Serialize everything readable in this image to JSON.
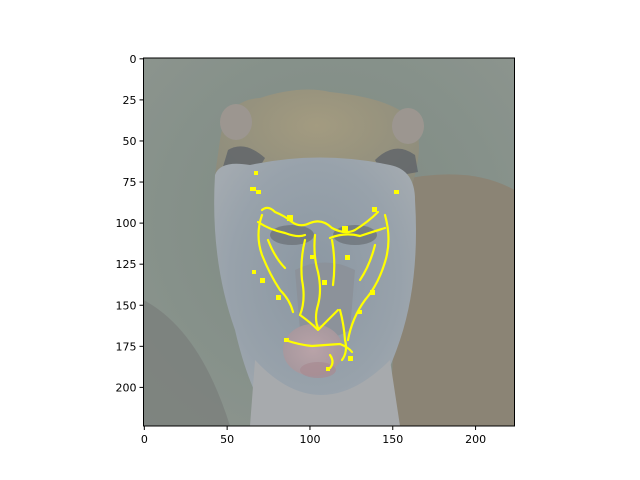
{
  "figure": {
    "subject": "monkey-face-photo-with-saliency-overlay",
    "overlay_color": "#ffff00",
    "image_tint": "washed-out-grayscale"
  },
  "axes": {
    "x_ticks": [
      {
        "value": 0,
        "label": "0"
      },
      {
        "value": 50,
        "label": "50"
      },
      {
        "value": 100,
        "label": "100"
      },
      {
        "value": 150,
        "label": "150"
      },
      {
        "value": 200,
        "label": "200"
      }
    ],
    "y_ticks": [
      {
        "value": 0,
        "label": "0"
      },
      {
        "value": 25,
        "label": "25"
      },
      {
        "value": 50,
        "label": "50"
      },
      {
        "value": 75,
        "label": "75"
      },
      {
        "value": 100,
        "label": "100"
      },
      {
        "value": 125,
        "label": "125"
      },
      {
        "value": 150,
        "label": "150"
      },
      {
        "value": 175,
        "label": "175"
      },
      {
        "value": 200,
        "label": "200"
      }
    ],
    "xlim": [
      -0.5,
      223.5
    ],
    "ylim": [
      223.5,
      -0.5
    ]
  }
}
